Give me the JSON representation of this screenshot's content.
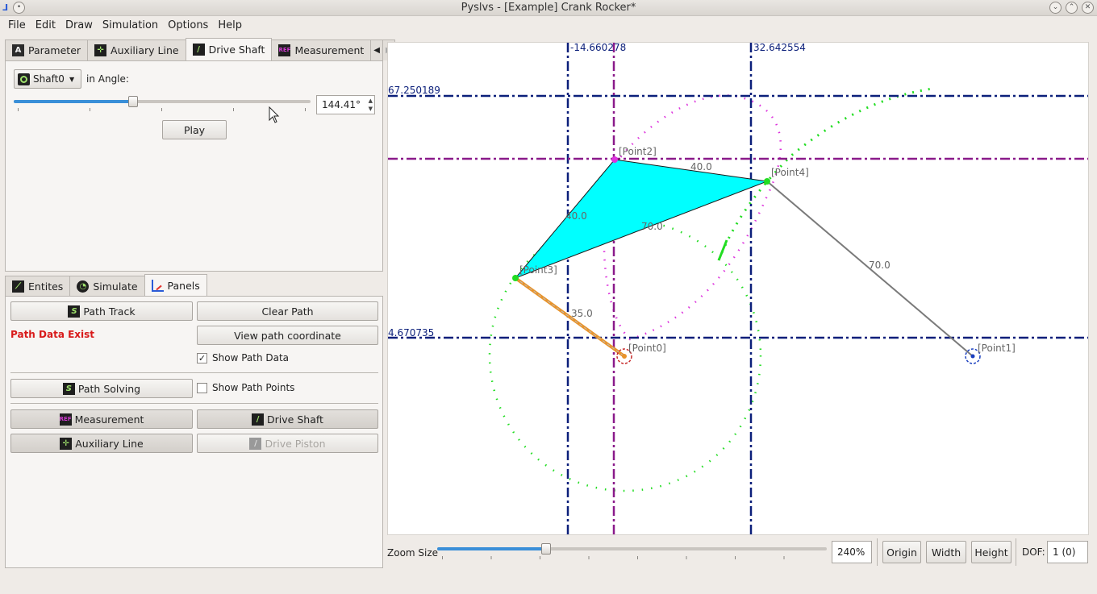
{
  "window": {
    "title": "Pyslvs - [Example] Crank Rocker*"
  },
  "menu": [
    "File",
    "Edit",
    "Draw",
    "Simulation",
    "Options",
    "Help"
  ],
  "top_tabs": [
    {
      "label": "Parameter",
      "icon": "parameter-icon"
    },
    {
      "label": "Auxiliary Line",
      "icon": "auxiliary-line-icon"
    },
    {
      "label": "Drive Shaft",
      "icon": "drive-shaft-icon"
    },
    {
      "label": "Measurement",
      "icon": "measurement-icon"
    }
  ],
  "drive_shaft": {
    "shaft_select": "Shaft0",
    "angle_label": "in Angle:",
    "angle_value": "144.41°",
    "angle_fraction": 0.401,
    "play_label": "Play"
  },
  "bottom_tabs": [
    {
      "label": "Entites",
      "icon": "entities-icon"
    },
    {
      "label": "Simulate",
      "icon": "simulate-icon"
    },
    {
      "label": "Panels",
      "icon": "panels-icon"
    }
  ],
  "panels": {
    "path_track": "Path Track",
    "clear_path": "Clear Path",
    "path_data_exist": "Path Data Exist",
    "view_path_coordinate": "View path coordinate",
    "show_path_data": "Show Path Data",
    "show_path_data_checked": true,
    "path_solving": "Path Solving",
    "show_path_points": "Show Path Points",
    "show_path_points_checked": false,
    "measurement": "Measurement",
    "drive_shaft": "Drive Shaft",
    "auxiliary_line": "Auxiliary Line",
    "drive_piston": "Drive Piston"
  },
  "canvas": {
    "guide_labels": {
      "x_left": "-14.660278",
      "x_right": "32.642554",
      "y_top": "67.250189",
      "y_bottom": "4.670735"
    },
    "points": [
      "[Point0]",
      "[Point1]",
      "[Point2]",
      "[Point3]",
      "[Point4]"
    ],
    "link_lengths": [
      "40.0",
      "70.0",
      "70.0",
      "35.0",
      "40.0"
    ],
    "colors": {
      "triangle": "#00ffff",
      "guide_blue": "#0b1f7a",
      "guide_purple": "#8a1a8a",
      "path_green": "#22dd22",
      "path_magenta": "#dd33dd",
      "crank": "#e8932a"
    }
  },
  "status": {
    "zoom_label": "Zoom Size",
    "zoom_value": "240%",
    "zoom_fraction": 0.28,
    "origin": "Origin",
    "width": "Width",
    "height": "Height",
    "dof_label": "DOF:",
    "dof_value": "1 (0)"
  }
}
